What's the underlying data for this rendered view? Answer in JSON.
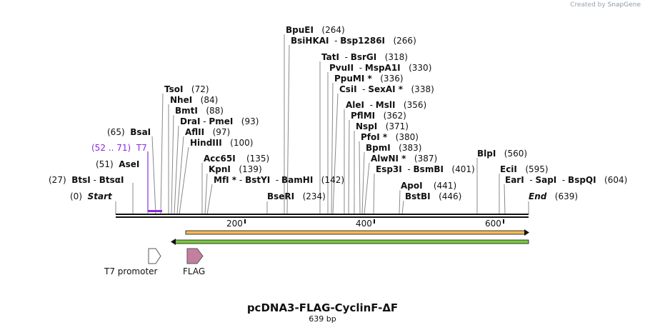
{
  "credit": "Created by",
  "credit_brand": "SnapGene",
  "title": "pcDNA3-FLAG-CyclinF-ΔF",
  "length_label": "639 bp",
  "start_label": "Start",
  "start_pos": "(0)",
  "end_label": "End",
  "end_pos": "(639)",
  "primer": {
    "range": "(52 .. 71)",
    "name": "T7"
  },
  "ticks": [
    "200",
    "400",
    "600"
  ],
  "sites": [
    {
      "names": [
        "BtsI",
        "BtsαI"
      ],
      "pos": "(27)"
    },
    {
      "names": [
        "AseI"
      ],
      "pos": "(51)"
    },
    {
      "names": [
        "BsaI"
      ],
      "pos": "(65)"
    },
    {
      "names": [
        "TsoI"
      ],
      "pos": "(72)"
    },
    {
      "names": [
        "NheI"
      ],
      "pos": "(84)"
    },
    {
      "names": [
        "BmtI"
      ],
      "pos": "(88)"
    },
    {
      "names": [
        "DraI",
        "PmeI"
      ],
      "pos": "(93)"
    },
    {
      "names": [
        "AflII"
      ],
      "pos": "(97)"
    },
    {
      "names": [
        "HindIII"
      ],
      "pos": "(100)"
    },
    {
      "names": [
        "Acc65I"
      ],
      "pos": "(135)"
    },
    {
      "names": [
        "KpnI"
      ],
      "pos": "(139)"
    },
    {
      "names": [
        "MfI *",
        "BstYI",
        "BamHI"
      ],
      "pos": "(142)"
    },
    {
      "names": [
        "BseRI"
      ],
      "pos": "(234)"
    },
    {
      "names": [
        "BpuEI"
      ],
      "pos": "(264)"
    },
    {
      "names": [
        "BsiHKAI",
        "Bsp1286I"
      ],
      "pos": "(266)"
    },
    {
      "names": [
        "TatI",
        "BsrGI"
      ],
      "pos": "(318)"
    },
    {
      "names": [
        "PvuII",
        "MspA1I"
      ],
      "pos": "(330)"
    },
    {
      "names": [
        "PpuMI *"
      ],
      "pos": "(336)"
    },
    {
      "names": [
        "CsiI",
        "SexAI *"
      ],
      "pos": "(338)"
    },
    {
      "names": [
        "AleI",
        "MslI"
      ],
      "pos": "(356)"
    },
    {
      "names": [
        "PflMI"
      ],
      "pos": "(362)"
    },
    {
      "names": [
        "NspI"
      ],
      "pos": "(371)"
    },
    {
      "names": [
        "PfoI *"
      ],
      "pos": "(380)"
    },
    {
      "names": [
        "BpmI"
      ],
      "pos": "(383)"
    },
    {
      "names": [
        "AlwNI *"
      ],
      "pos": "(387)"
    },
    {
      "names": [
        "Esp3I",
        "BsmBI"
      ],
      "pos": "(401)"
    },
    {
      "names": [
        "ApoI"
      ],
      "pos": "(441)"
    },
    {
      "names": [
        "BstBI"
      ],
      "pos": "(446)"
    },
    {
      "names": [
        "BlpI"
      ],
      "pos": "(560)"
    },
    {
      "names": [
        "EciI"
      ],
      "pos": "(595)"
    },
    {
      "names": [
        "EarI",
        "SapI",
        "BspQI"
      ],
      "pos": "(604)"
    }
  ],
  "features": [
    {
      "name": "T7 promoter"
    },
    {
      "name": "FLAG"
    }
  ],
  "colors": {
    "orf1": "#f5b85a",
    "orf2": "#7bc843",
    "primer": "#8a2be2",
    "flag": "#c47fa0"
  }
}
